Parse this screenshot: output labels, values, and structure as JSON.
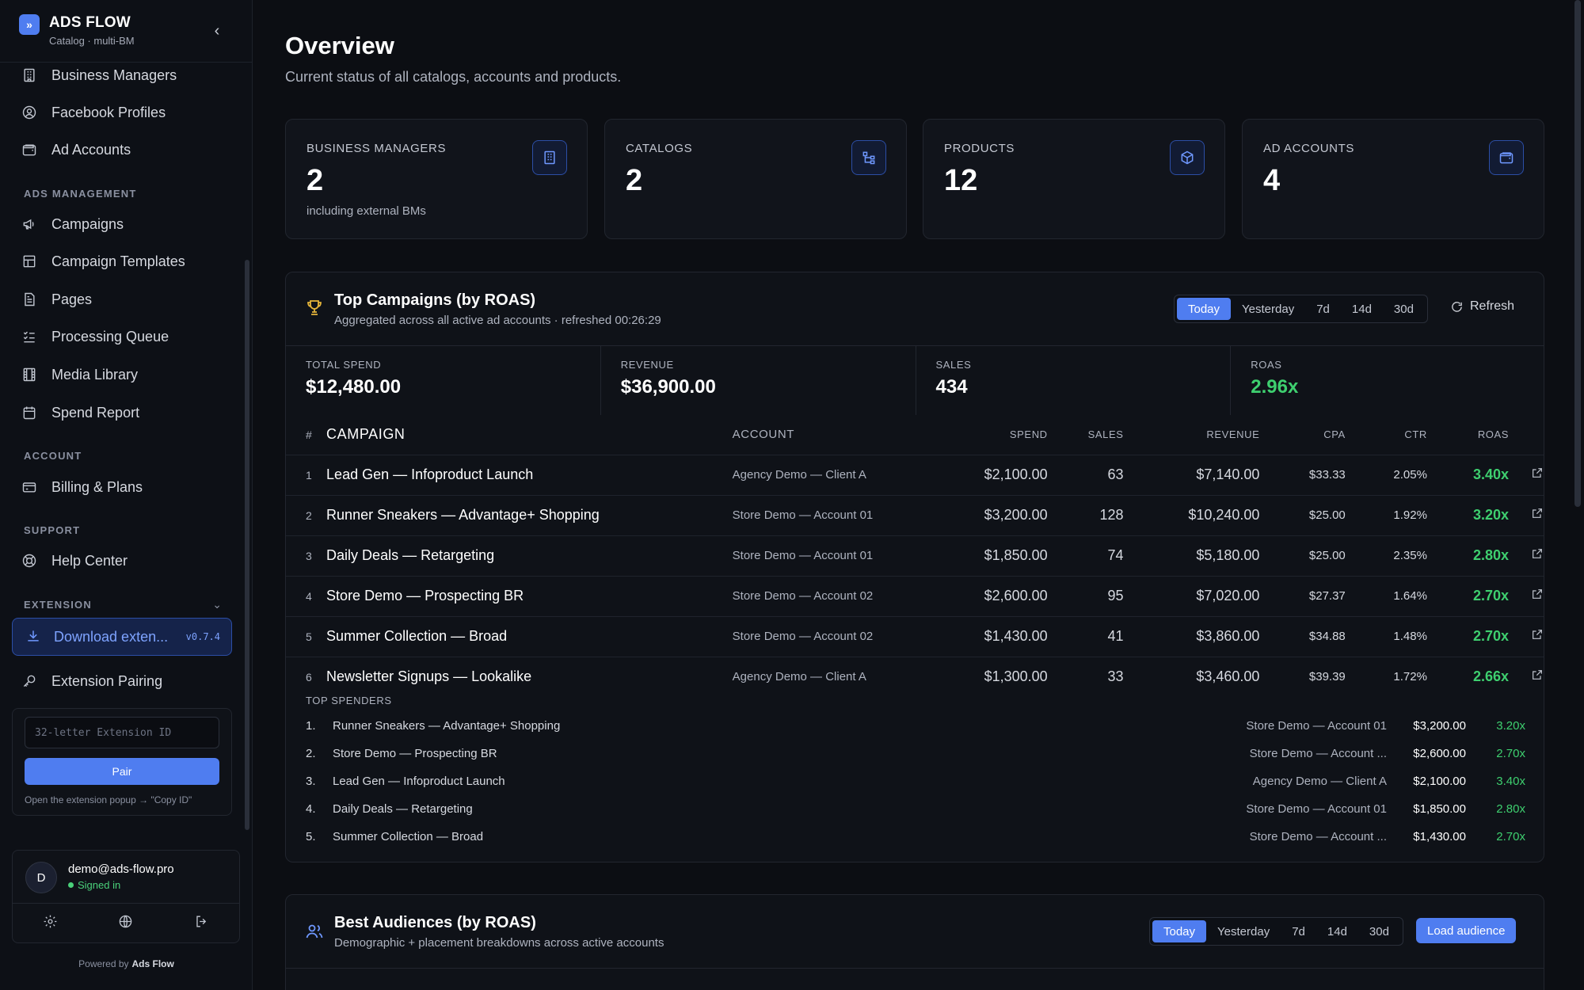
{
  "brand": {
    "name": "ADS FLOW",
    "subtitle": "Catalog · multi-BM"
  },
  "sidebar": {
    "top_items": [
      {
        "label": "Business Managers",
        "icon": "building-icon"
      },
      {
        "label": "Facebook Profiles",
        "icon": "user-circle-icon"
      },
      {
        "label": "Ad Accounts",
        "icon": "wallet-icon"
      }
    ],
    "ads_management_label": "ADS MANAGEMENT",
    "ads_items": [
      {
        "label": "Campaigns",
        "icon": "megaphone-icon"
      },
      {
        "label": "Campaign Templates",
        "icon": "template-icon"
      },
      {
        "label": "Pages",
        "icon": "document-icon"
      },
      {
        "label": "Processing Queue",
        "icon": "list-check-icon"
      },
      {
        "label": "Media Library",
        "icon": "film-icon"
      },
      {
        "label": "Spend Report",
        "icon": "calendar-icon"
      }
    ],
    "account_label": "ACCOUNT",
    "account_items": [
      {
        "label": "Billing & Plans",
        "icon": "credit-card-icon"
      }
    ],
    "support_label": "SUPPORT",
    "support_items": [
      {
        "label": "Help Center",
        "icon": "lifebuoy-icon"
      }
    ],
    "extension_label": "EXTENSION",
    "download_label": "Download exten...",
    "download_version": "v0.7.4",
    "pairing_label": "Extension Pairing",
    "pair_placeholder": "32-letter Extension ID",
    "pair_button": "Pair",
    "pair_hint": "Open the extension popup → \"Copy ID\""
  },
  "user": {
    "initial": "D",
    "email": "demo@ads-flow.pro",
    "status": "Signed in"
  },
  "footer": {
    "powered_by": "Powered by",
    "brand": "Ads Flow"
  },
  "page": {
    "title": "Overview",
    "subtitle": "Current status of all catalogs, accounts and products."
  },
  "stats": [
    {
      "label": "BUSINESS MANAGERS",
      "value": "2",
      "note": "including external BMs",
      "icon": "building-icon"
    },
    {
      "label": "CATALOGS",
      "value": "2",
      "note": "",
      "icon": "hierarchy-icon"
    },
    {
      "label": "PRODUCTS",
      "value": "12",
      "note": "",
      "icon": "box-icon"
    },
    {
      "label": "AD ACCOUNTS",
      "value": "4",
      "note": "",
      "icon": "wallet-icon"
    }
  ],
  "top_campaigns": {
    "title": "Top Campaigns (by ROAS)",
    "subtitle": "Aggregated across all active ad accounts · refreshed 00:26:29",
    "ranges": [
      "Today",
      "Yesterday",
      "7d",
      "14d",
      "30d"
    ],
    "active_range": "Today",
    "refresh_label": "Refresh",
    "summary": [
      {
        "label": "TOTAL SPEND",
        "value": "$12,480.00"
      },
      {
        "label": "REVENUE",
        "value": "$36,900.00"
      },
      {
        "label": "SALES",
        "value": "434"
      },
      {
        "label": "ROAS",
        "value": "2.96x"
      }
    ],
    "columns": [
      "#",
      "CAMPAIGN",
      "ACCOUNT",
      "SPEND",
      "SALES",
      "REVENUE",
      "CPA",
      "CTR",
      "ROAS"
    ],
    "rows": [
      {
        "n": "1",
        "campaign": "Lead Gen — Infoproduct Launch",
        "account": "Agency Demo — Client A",
        "spend": "$2,100.00",
        "sales": "63",
        "revenue": "$7,140.00",
        "cpa": "$33.33",
        "ctr": "2.05%",
        "roas": "3.40x"
      },
      {
        "n": "2",
        "campaign": "Runner Sneakers — Advantage+ Shopping",
        "account": "Store Demo — Account 01",
        "spend": "$3,200.00",
        "sales": "128",
        "revenue": "$10,240.00",
        "cpa": "$25.00",
        "ctr": "1.92%",
        "roas": "3.20x"
      },
      {
        "n": "3",
        "campaign": "Daily Deals — Retargeting",
        "account": "Store Demo — Account 01",
        "spend": "$1,850.00",
        "sales": "74",
        "revenue": "$5,180.00",
        "cpa": "$25.00",
        "ctr": "2.35%",
        "roas": "2.80x"
      },
      {
        "n": "4",
        "campaign": "Store Demo — Prospecting BR",
        "account": "Store Demo — Account 02",
        "spend": "$2,600.00",
        "sales": "95",
        "revenue": "$7,020.00",
        "cpa": "$27.37",
        "ctr": "1.64%",
        "roas": "2.70x"
      },
      {
        "n": "5",
        "campaign": "Summer Collection — Broad",
        "account": "Store Demo — Account 02",
        "spend": "$1,430.00",
        "sales": "41",
        "revenue": "$3,860.00",
        "cpa": "$34.88",
        "ctr": "1.48%",
        "roas": "2.70x"
      },
      {
        "n": "6",
        "campaign": "Newsletter Signups — Lookalike",
        "account": "Agency Demo — Client A",
        "spend": "$1,300.00",
        "sales": "33",
        "revenue": "$3,460.00",
        "cpa": "$39.39",
        "ctr": "1.72%",
        "roas": "2.66x"
      }
    ],
    "spenders_title": "TOP SPENDERS",
    "spenders": [
      {
        "n": "1.",
        "campaign": "Runner Sneakers — Advantage+ Shopping",
        "account": "Store Demo — Account 01",
        "spend": "$3,200.00",
        "roas": "3.20x"
      },
      {
        "n": "2.",
        "campaign": "Store Demo — Prospecting BR",
        "account": "Store Demo — Account ...",
        "spend": "$2,600.00",
        "roas": "2.70x"
      },
      {
        "n": "3.",
        "campaign": "Lead Gen — Infoproduct Launch",
        "account": "Agency Demo — Client A",
        "spend": "$2,100.00",
        "roas": "3.40x"
      },
      {
        "n": "4.",
        "campaign": "Daily Deals — Retargeting",
        "account": "Store Demo — Account 01",
        "spend": "$1,850.00",
        "roas": "2.80x"
      },
      {
        "n": "5.",
        "campaign": "Summer Collection — Broad",
        "account": "Store Demo — Account ...",
        "spend": "$1,430.00",
        "roas": "2.70x"
      }
    ]
  },
  "best_audiences": {
    "title": "Best Audiences (by ROAS)",
    "subtitle": "Demographic + placement breakdowns across active accounts",
    "ranges": [
      "Today",
      "Yesterday",
      "7d",
      "14d",
      "30d"
    ],
    "active_range": "Today",
    "load_label": "Load audience"
  },
  "colors": {
    "accent": "#4f7df0",
    "positive": "#3ecf6f",
    "background": "#0c0e13"
  }
}
